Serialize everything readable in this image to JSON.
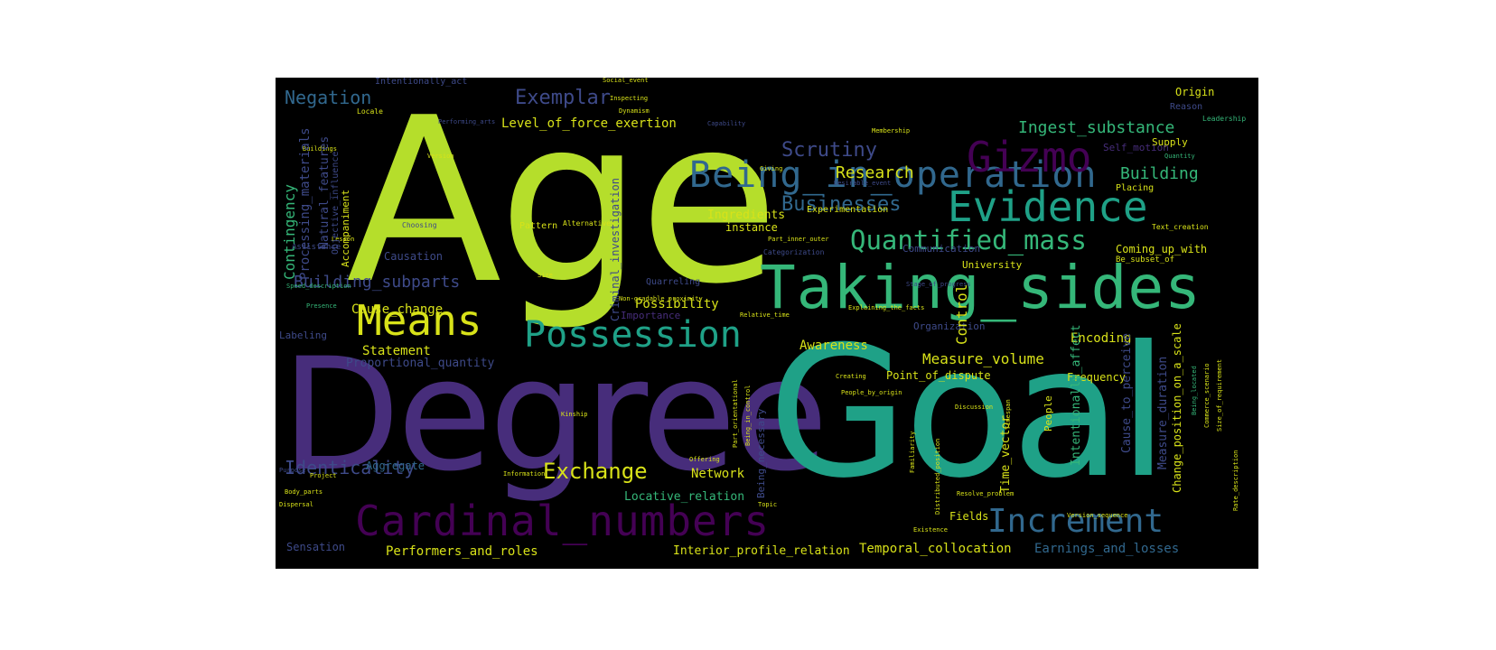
{
  "colors": {
    "background": "#000000",
    "page": "#ffffff",
    "lime": "#b5de2b",
    "yellow": "#d8e219",
    "teal": "#1fa187",
    "green": "#35b779",
    "blue": "#31688e",
    "steel": "#3e4a89",
    "purple": "#472d7b",
    "violet": "#440154"
  },
  "words": {
    "age": "Age",
    "degree": "Degree",
    "goal": "Goal",
    "taking_sides": "Taking_sides",
    "being_in_operation": "Being_in_operation",
    "cardinal_numbers": "Cardinal_numbers",
    "evidence": "Evidence",
    "gizmo": "Gizmo",
    "means": "Means",
    "possession": "Possession",
    "increment": "Increment",
    "quantified_mass": "Quantified_mass",
    "businesses": "Businesses",
    "scrutiny": "Scrutiny",
    "exemplar": "Exemplar",
    "exchange": "Exchange",
    "identicality": "Identicality",
    "negation": "Negation",
    "building_subparts": "Building_subparts",
    "ingest_substance": "Ingest_substance",
    "research": "Research",
    "building": "Building",
    "measure_volume": "Measure_volume",
    "level_of_force_exertion": "Level_of_force_exertion",
    "cause_change": "Cause_change",
    "possibility": "Possibility",
    "network": "Network",
    "performers_and_roles": "Performers_and_roles",
    "interior_profile_relation": "Interior_profile_relation",
    "temporal_collocation": "Temporal_collocation",
    "earnings_and_losses": "Earnings_and_losses",
    "locative_relation": "Locative_relation",
    "encoding": "Encoding",
    "awareness": "Awareness",
    "statement": "Statement",
    "proportional_quantity": "Proportional_quantity",
    "point_of_dispute": "Point_of_dispute",
    "frequency": "Frequency",
    "coming_up_with": "Coming_up_with",
    "ingredients": "Ingredients",
    "instance": "instance",
    "causation": "Causation",
    "labeling": "Labeling",
    "contingency": "Contingency",
    "processing_materials": "Processing_materials",
    "natural_features": "Natural_features",
    "accompaniment": "Accompaniment",
    "control": "Control",
    "criminal_investigation": "Criminal_investigation",
    "time_vector": "Time_vector",
    "intentionally_affect": "Intentionally_affect",
    "cause_to_perceive": "Cause_to_perceive",
    "measure_duration": "Measure_duration",
    "change_position_on_a_scale": "Change_position_on_a_scale",
    "people": "People",
    "being_necessary": "Being_necessary",
    "fields": "Fields",
    "aggregate": "Aggregate",
    "sensation": "Sensation",
    "intentionally_act": "Intentionally_act",
    "origin": "Origin",
    "reason": "Reason",
    "leadership": "Leadership",
    "supply": "Supply",
    "quantity": "Quantity",
    "self_motion": "Self_motion",
    "placing": "Placing",
    "experimentation": "Experimentation",
    "categorization": "Categorization",
    "university": "University",
    "communication": "Communication",
    "be_subset_of": "Be_subset_of",
    "text_creation": "Text_creation",
    "organization": "Organization",
    "quarreling": "Quarreling",
    "pattern": "Pattern",
    "alternatives": "Alternatives",
    "choosing": "Choosing",
    "locale": "Locale",
    "inspecting": "Inspecting",
    "dynamism": "Dynamism",
    "capability": "Capability",
    "membership": "Membership",
    "social_event": "Social_event",
    "buildings": "Buildings",
    "giving": "Giving",
    "desirable_event": "Desirable_event",
    "part_inner_outer": "Part_inner_outer",
    "stage_of_progress": "Stage_of_progress",
    "importance": "Importance",
    "relative_time": "Relative_time",
    "explaining_the_facts": "Explaining_the_facts",
    "speed_description": "Speed_description",
    "presence": "Presence",
    "size": "Size",
    "lesson": "Lesson",
    "kinship": "Kinship",
    "being_in_control": "Being_in_control",
    "part_orientational": "Part_orientational",
    "creating": "Creating",
    "people_by_origin": "People_by_origin",
    "discussion": "Discussion",
    "project": "Project",
    "information": "Information",
    "offering": "Offering",
    "purpose": "Purpose",
    "body_parts": "Body_parts",
    "dispersal": "Dispersal",
    "topic": "Topic",
    "existence": "Existence",
    "version_sequence": "Version_sequence",
    "resolve_problem": "Resolve_problem",
    "distributed_position": "Distributed_position",
    "commerce_scenario": "Commerce_scenario",
    "performing_arts": "Performing_arts",
    "version": "Version",
    "non_gradable_proximity": "Non-gradable_proximity",
    "objective_influence": "Objective_influence",
    "assistance": "Assistance",
    "being_located": "Being_located",
    "familiarity": "Familiarity",
    "timespan": "Timespan",
    "rate_description": "Rate_description",
    "size_of_requirement": "Size_of_requirement"
  }
}
